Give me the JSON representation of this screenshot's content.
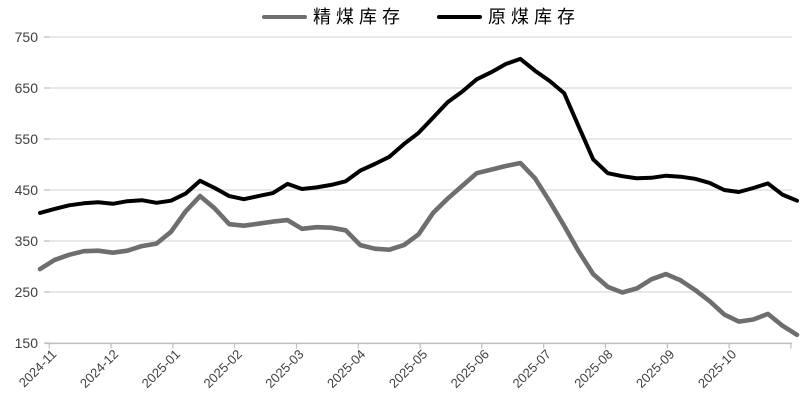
{
  "chart_data": {
    "type": "line",
    "title": "",
    "x_labels": [
      "2024-11",
      "2024-12",
      "2025-01",
      "2025-02",
      "2025-03",
      "2025-04",
      "2025-05",
      "2025-06",
      "2025-07",
      "2025-08",
      "2025-09",
      "2025-10"
    ],
    "x_frequency": "weekly",
    "ylim": [
      150,
      750
    ],
    "yticks": [
      150,
      250,
      350,
      450,
      550,
      650,
      750
    ],
    "grid": "horizontal",
    "legend_position": "top-center",
    "series": [
      {
        "name": "精煤库存",
        "color": "#6e6e6e",
        "stroke_width": 4.6,
        "values": [
          295,
          313,
          323,
          330,
          331,
          327,
          331,
          340,
          345,
          368,
          408,
          438,
          414,
          383,
          380,
          384,
          388,
          391,
          374,
          377,
          376,
          371,
          342,
          335,
          333,
          342,
          363,
          405,
          433,
          458,
          483,
          490,
          497,
          503,
          473,
          428,
          380,
          330,
          285,
          260,
          249,
          257,
          275,
          285,
          273,
          254,
          232,
          206,
          192,
          196,
          207,
          184,
          166
        ]
      },
      {
        "name": "原煤库存",
        "color": "#000000",
        "stroke_width": 4,
        "values": [
          405,
          413,
          420,
          424,
          426,
          423,
          428,
          430,
          425,
          429,
          443,
          468,
          454,
          438,
          432,
          438,
          444,
          462,
          452,
          455,
          460,
          467,
          488,
          501,
          515,
          540,
          562,
          592,
          622,
          643,
          667,
          681,
          697,
          707,
          684,
          664,
          640,
          575,
          510,
          483,
          477,
          473,
          474,
          478,
          476,
          472,
          464,
          450,
          446,
          454,
          463,
          441,
          429
        ]
      }
    ]
  },
  "style": {
    "grid_color": "#d9d9d9",
    "axis_color": "#bfbfbf",
    "label_color": "#404040",
    "background": "#ffffff"
  }
}
